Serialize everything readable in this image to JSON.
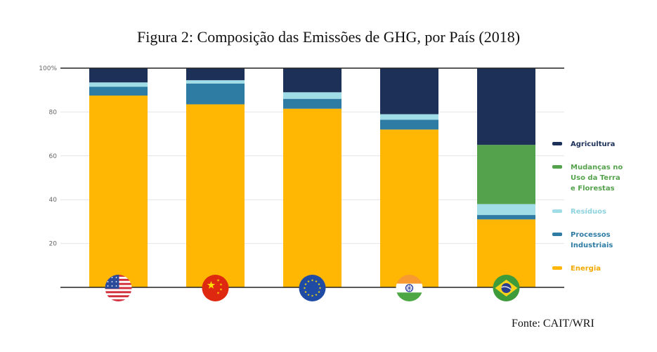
{
  "title": "Figura 2: Composição das Emissões de GHG, por País (2018)",
  "source": "Fonte: CAIT/WRI",
  "chart_data": {
    "type": "bar",
    "stacked": true,
    "categories": [
      "EUA",
      "China",
      "União Europeia",
      "Índia",
      "Brasil"
    ],
    "ylim": [
      0,
      100
    ],
    "yticks": [
      "20",
      "40",
      "60",
      "80",
      "100%"
    ],
    "ytick_values": [
      20,
      40,
      60,
      80,
      100
    ],
    "grid": true,
    "legend_position": "right",
    "series": [
      {
        "name": "Energia",
        "color": "#FFB703",
        "values": [
          87.5,
          83.5,
          81.5,
          72,
          31
        ]
      },
      {
        "name": "Processos Industriais",
        "color": "#2E7BA4",
        "values": [
          4,
          9.5,
          4.5,
          4.5,
          2
        ]
      },
      {
        "name": "Resíduos",
        "color": "#A0DDE6",
        "values": [
          2,
          1.5,
          3,
          2.5,
          5
        ]
      },
      {
        "name": "Mudanças no Uso da Terra e Florestas",
        "color": "#55A24C",
        "values": [
          0,
          0,
          0,
          0,
          27
        ]
      },
      {
        "name": "Agricultura",
        "color": "#1C3058",
        "values": [
          6.5,
          5.5,
          11,
          21,
          35
        ]
      }
    ],
    "legend": [
      {
        "lines": [
          "Agricultura"
        ],
        "color": "#1C3058",
        "text_color": "#1C3058"
      },
      {
        "lines": [
          "Mudanças no",
          "Uso da Terra",
          "e Florestas"
        ],
        "color": "#55A24C",
        "text_color": "#55A24C"
      },
      {
        "lines": [
          "Resíduos"
        ],
        "color": "#A0DDE6",
        "text_color": "#8FD3DE"
      },
      {
        "lines": [
          "Processos",
          "Industriais"
        ],
        "color": "#2E7BA4",
        "text_color": "#2E7BA4"
      },
      {
        "lines": [
          "Energia"
        ],
        "color": "#FFB703",
        "text_color": "#F2A900"
      }
    ],
    "flag_icons": [
      "usa-flag-icon",
      "china-flag-icon",
      "eu-flag-icon",
      "india-flag-icon",
      "brazil-flag-icon"
    ]
  }
}
